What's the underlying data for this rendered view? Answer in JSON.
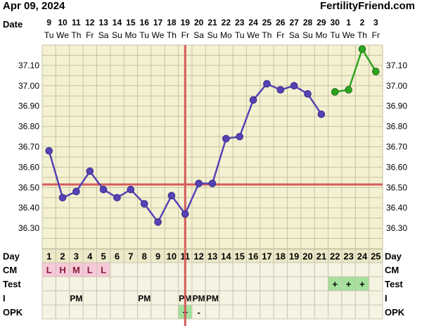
{
  "header": {
    "date": "Apr 09, 2024",
    "site": "FertilityFriend.com"
  },
  "colors": {
    "background": "#f4f1d2",
    "grid": "#c7c3a0",
    "pre_ovulation_line": "#5542b4",
    "post_ovulation_line": "#2ea421",
    "coverline": "#d65a5a",
    "cm_cell": "#f6c8d8",
    "plus_cell": "#a5e09d"
  },
  "labels": {
    "date_row": "Date",
    "day_row": "Day",
    "cm_row": "CM",
    "test_row": "Test",
    "intercourse_row": "I",
    "opk_row": "OPK"
  },
  "chart_data": {
    "type": "line",
    "ylim": [
      36.2,
      37.2
    ],
    "yticks": [
      "37.10",
      "37.00",
      "36.90",
      "36.80",
      "36.70",
      "36.60",
      "36.50",
      "36.40",
      "36.30"
    ],
    "dates": [
      "9",
      "10",
      "11",
      "12",
      "13",
      "14",
      "15",
      "16",
      "17",
      "18",
      "19",
      "20",
      "21",
      "22",
      "23",
      "24",
      "25",
      "26",
      "27",
      "28",
      "29",
      "30",
      "1",
      "2",
      "3"
    ],
    "weekdays": [
      "Tu",
      "We",
      "Th",
      "Fr",
      "Sa",
      "Su",
      "Mo",
      "Tu",
      "We",
      "Th",
      "Fr",
      "Sa",
      "Su",
      "Mo",
      "Tu",
      "We",
      "Th",
      "Fr",
      "Sa",
      "Su",
      "Mo",
      "Tu",
      "We",
      "Th",
      "Fr"
    ],
    "cycle_days": [
      "1",
      "2",
      "3",
      "4",
      "5",
      "6",
      "7",
      "8",
      "9",
      "10",
      "11",
      "12",
      "13",
      "14",
      "15",
      "16",
      "17",
      "18",
      "19",
      "20",
      "21",
      "22",
      "23",
      "24",
      "25"
    ],
    "temperatures": [
      36.68,
      36.45,
      36.48,
      36.58,
      36.49,
      36.45,
      36.49,
      36.42,
      36.33,
      36.46,
      36.37,
      36.52,
      36.52,
      36.74,
      36.75,
      36.93,
      37.01,
      36.98,
      37.0,
      36.96,
      36.86,
      36.97,
      36.98,
      37.18,
      37.07
    ],
    "test_start_index": 21,
    "coverline": 36.515,
    "ovulation_day_index": 10,
    "cm": [
      "L",
      "H",
      "M",
      "L",
      "L",
      "",
      "",
      "",
      "",
      "",
      "",
      "",
      "",
      "",
      "",
      "",
      "",
      "",
      "",
      "",
      "",
      "",
      "",
      "",
      ""
    ],
    "test": [
      "",
      "",
      "",
      "",
      "",
      "",
      "",
      "",
      "",
      "",
      "",
      "",
      "",
      "",
      "",
      "",
      "",
      "",
      "",
      "",
      "",
      "+",
      "+",
      "+",
      ""
    ],
    "intercourse": [
      "",
      "",
      "PM",
      "",
      "",
      "",
      "",
      "PM",
      "",
      "",
      "PM",
      "PM",
      "PM",
      "",
      "",
      "",
      "",
      "",
      "",
      "",
      "",
      "",
      "",
      "",
      ""
    ],
    "opk": [
      "",
      "",
      "",
      "",
      "",
      "",
      "",
      "",
      "",
      "",
      "+",
      "-",
      "",
      "",
      "",
      "",
      "",
      "",
      "",
      "",
      "",
      "",
      "",
      "",
      ""
    ]
  }
}
